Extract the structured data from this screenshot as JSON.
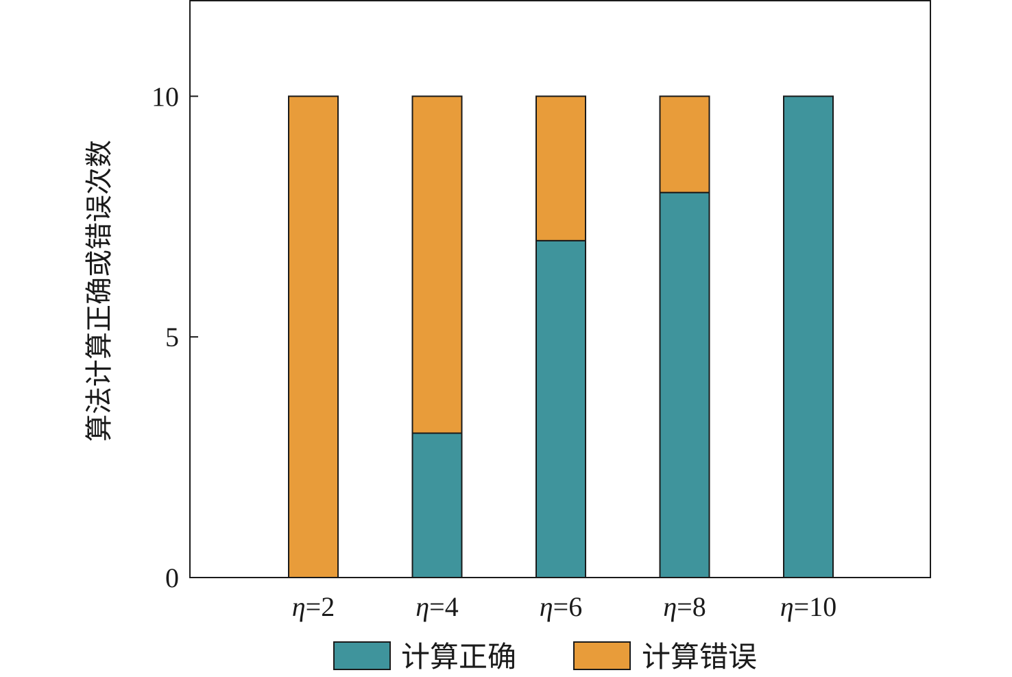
{
  "chart_data": {
    "type": "bar",
    "stacked": true,
    "ylabel": "算法计算正确或错误次数",
    "xlabel": "",
    "categories": [
      {
        "symbol": "η",
        "rest": "=2"
      },
      {
        "symbol": "η",
        "rest": "=4"
      },
      {
        "symbol": "η",
        "rest": "=6"
      },
      {
        "symbol": "η",
        "rest": "=8"
      },
      {
        "symbol": "η",
        "rest": "=10"
      }
    ],
    "category_labels": [
      "η=2",
      "η=4",
      "η=6",
      "η=8",
      "η=10"
    ],
    "series": [
      {
        "name": "计算正确",
        "color": "#3f949c",
        "values": [
          0,
          3,
          7,
          8,
          10
        ]
      },
      {
        "name": "计算错误",
        "color": "#e89c3a",
        "values": [
          10,
          7,
          3,
          2,
          0
        ]
      }
    ],
    "ylim": [
      0,
      12
    ],
    "yticks": [
      0,
      5,
      10
    ],
    "ytick_labels": [
      "0",
      "5",
      "10"
    ],
    "grid": false,
    "legend_position": "bottom"
  }
}
